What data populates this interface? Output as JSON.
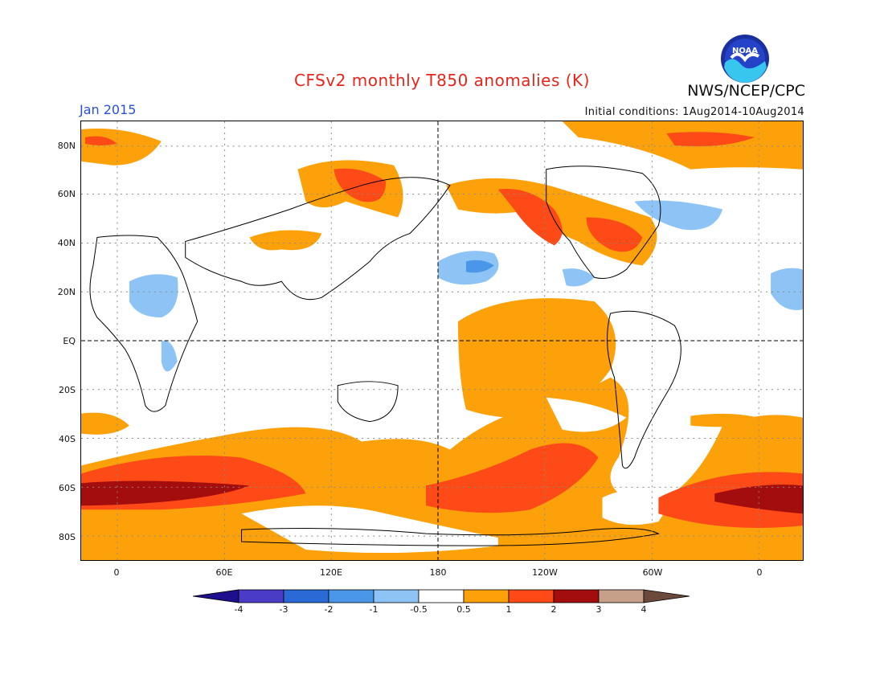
{
  "header": {
    "title": "CFSv2 monthly T850 anomalies (K)",
    "org": "NWS/NCEP/CPC",
    "logo_text": "NOAA",
    "month": "Jan 2015",
    "initial_conditions": "Initial conditions: 1Aug2014-10Aug2014"
  },
  "map": {
    "lat_labels": [
      "80N",
      "60N",
      "40N",
      "20N",
      "EQ",
      "20S",
      "40S",
      "60S",
      "80S"
    ],
    "lon_labels": [
      "0",
      "60E",
      "120E",
      "180",
      "120W",
      "60W",
      "0"
    ]
  },
  "colorbar": {
    "labels": [
      "-4",
      "-3",
      "-2",
      "-1",
      "-0.5",
      "0.5",
      "1",
      "2",
      "3",
      "4"
    ],
    "colors": [
      "#1e0f8c",
      "#4b3cc8",
      "#2a6ad6",
      "#4a97ea",
      "#8ec4f5",
      "#ffffff",
      "#fda10b",
      "#fd4a16",
      "#a40d0d",
      "#c7a08a",
      "#6b4a3c"
    ]
  }
}
